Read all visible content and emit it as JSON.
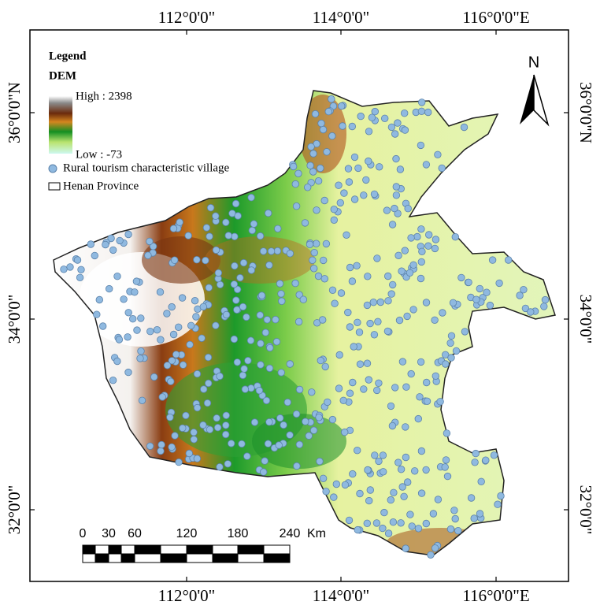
{
  "map": {
    "top_labels": [
      "112°0'0\"",
      "114°0'0\"",
      "116°0'0\"E"
    ],
    "bottom_labels": [
      "112°0'0\"",
      "114°0'0\"",
      "116°0'0\"E"
    ],
    "left_labels": [
      "36°0'0\"N",
      "34°0'0\"",
      "32°0'0\""
    ],
    "right_labels": [
      "36°0'0\"N",
      "34°0'0\"",
      "32°0'0\""
    ],
    "legend": {
      "title": "Legend",
      "dem": "DEM",
      "high": "High : 2398",
      "low": "Low : -73",
      "village": "Rural tourism characteristic village",
      "province": "Henan Province"
    },
    "north": "N",
    "scale": {
      "ticks": [
        "0",
        "30",
        "60",
        "120",
        "180",
        "240"
      ],
      "unit": "Km"
    }
  }
}
